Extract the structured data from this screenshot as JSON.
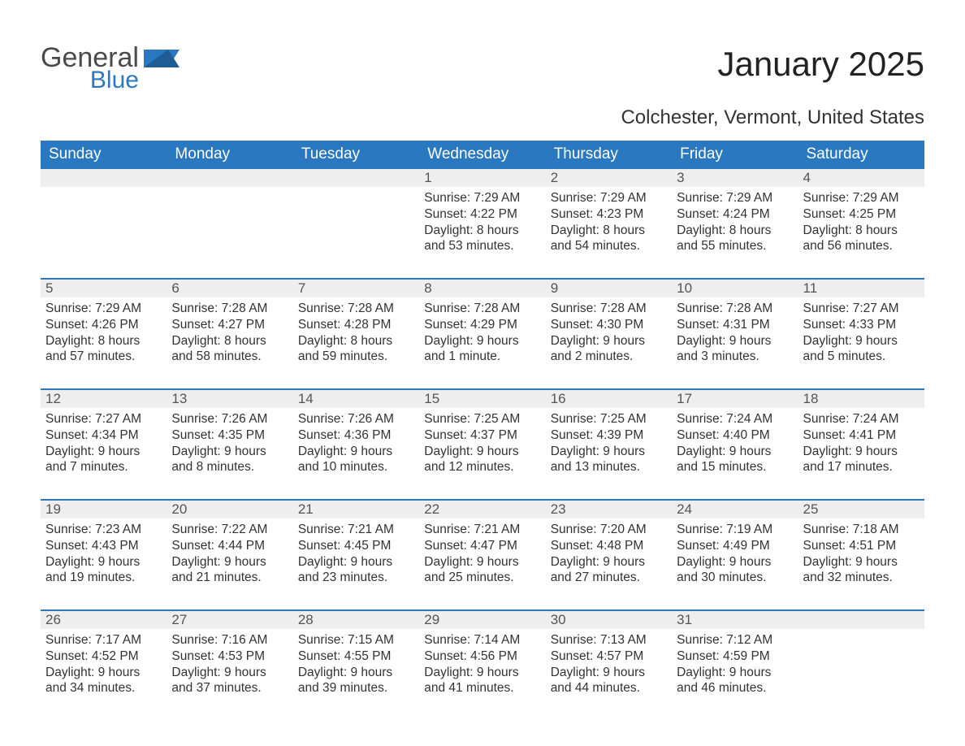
{
  "logo": {
    "general": "General",
    "blue": "Blue"
  },
  "title": "January 2025",
  "subtitle": "Colchester, Vermont, United States",
  "colors": {
    "brand": "#2a78bf",
    "header_bg": "#2a78bf",
    "header_text": "#ffffff",
    "daynum_bg": "#eeeeee",
    "text": "#333333",
    "week_border": "#2a78bf"
  },
  "daysOfWeek": [
    "Sunday",
    "Monday",
    "Tuesday",
    "Wednesday",
    "Thursday",
    "Friday",
    "Saturday"
  ],
  "weeks": [
    [
      {
        "n": "",
        "sunrise": "",
        "sunset": "",
        "daylight": ""
      },
      {
        "n": "",
        "sunrise": "",
        "sunset": "",
        "daylight": ""
      },
      {
        "n": "",
        "sunrise": "",
        "sunset": "",
        "daylight": ""
      },
      {
        "n": "1",
        "sunrise": "Sunrise: 7:29 AM",
        "sunset": "Sunset: 4:22 PM",
        "daylight": "Daylight: 8 hours and 53 minutes."
      },
      {
        "n": "2",
        "sunrise": "Sunrise: 7:29 AM",
        "sunset": "Sunset: 4:23 PM",
        "daylight": "Daylight: 8 hours and 54 minutes."
      },
      {
        "n": "3",
        "sunrise": "Sunrise: 7:29 AM",
        "sunset": "Sunset: 4:24 PM",
        "daylight": "Daylight: 8 hours and 55 minutes."
      },
      {
        "n": "4",
        "sunrise": "Sunrise: 7:29 AM",
        "sunset": "Sunset: 4:25 PM",
        "daylight": "Daylight: 8 hours and 56 minutes."
      }
    ],
    [
      {
        "n": "5",
        "sunrise": "Sunrise: 7:29 AM",
        "sunset": "Sunset: 4:26 PM",
        "daylight": "Daylight: 8 hours and 57 minutes."
      },
      {
        "n": "6",
        "sunrise": "Sunrise: 7:28 AM",
        "sunset": "Sunset: 4:27 PM",
        "daylight": "Daylight: 8 hours and 58 minutes."
      },
      {
        "n": "7",
        "sunrise": "Sunrise: 7:28 AM",
        "sunset": "Sunset: 4:28 PM",
        "daylight": "Daylight: 8 hours and 59 minutes."
      },
      {
        "n": "8",
        "sunrise": "Sunrise: 7:28 AM",
        "sunset": "Sunset: 4:29 PM",
        "daylight": "Daylight: 9 hours and 1 minute."
      },
      {
        "n": "9",
        "sunrise": "Sunrise: 7:28 AM",
        "sunset": "Sunset: 4:30 PM",
        "daylight": "Daylight: 9 hours and 2 minutes."
      },
      {
        "n": "10",
        "sunrise": "Sunrise: 7:28 AM",
        "sunset": "Sunset: 4:31 PM",
        "daylight": "Daylight: 9 hours and 3 minutes."
      },
      {
        "n": "11",
        "sunrise": "Sunrise: 7:27 AM",
        "sunset": "Sunset: 4:33 PM",
        "daylight": "Daylight: 9 hours and 5 minutes."
      }
    ],
    [
      {
        "n": "12",
        "sunrise": "Sunrise: 7:27 AM",
        "sunset": "Sunset: 4:34 PM",
        "daylight": "Daylight: 9 hours and 7 minutes."
      },
      {
        "n": "13",
        "sunrise": "Sunrise: 7:26 AM",
        "sunset": "Sunset: 4:35 PM",
        "daylight": "Daylight: 9 hours and 8 minutes."
      },
      {
        "n": "14",
        "sunrise": "Sunrise: 7:26 AM",
        "sunset": "Sunset: 4:36 PM",
        "daylight": "Daylight: 9 hours and 10 minutes."
      },
      {
        "n": "15",
        "sunrise": "Sunrise: 7:25 AM",
        "sunset": "Sunset: 4:37 PM",
        "daylight": "Daylight: 9 hours and 12 minutes."
      },
      {
        "n": "16",
        "sunrise": "Sunrise: 7:25 AM",
        "sunset": "Sunset: 4:39 PM",
        "daylight": "Daylight: 9 hours and 13 minutes."
      },
      {
        "n": "17",
        "sunrise": "Sunrise: 7:24 AM",
        "sunset": "Sunset: 4:40 PM",
        "daylight": "Daylight: 9 hours and 15 minutes."
      },
      {
        "n": "18",
        "sunrise": "Sunrise: 7:24 AM",
        "sunset": "Sunset: 4:41 PM",
        "daylight": "Daylight: 9 hours and 17 minutes."
      }
    ],
    [
      {
        "n": "19",
        "sunrise": "Sunrise: 7:23 AM",
        "sunset": "Sunset: 4:43 PM",
        "daylight": "Daylight: 9 hours and 19 minutes."
      },
      {
        "n": "20",
        "sunrise": "Sunrise: 7:22 AM",
        "sunset": "Sunset: 4:44 PM",
        "daylight": "Daylight: 9 hours and 21 minutes."
      },
      {
        "n": "21",
        "sunrise": "Sunrise: 7:21 AM",
        "sunset": "Sunset: 4:45 PM",
        "daylight": "Daylight: 9 hours and 23 minutes."
      },
      {
        "n": "22",
        "sunrise": "Sunrise: 7:21 AM",
        "sunset": "Sunset: 4:47 PM",
        "daylight": "Daylight: 9 hours and 25 minutes."
      },
      {
        "n": "23",
        "sunrise": "Sunrise: 7:20 AM",
        "sunset": "Sunset: 4:48 PM",
        "daylight": "Daylight: 9 hours and 27 minutes."
      },
      {
        "n": "24",
        "sunrise": "Sunrise: 7:19 AM",
        "sunset": "Sunset: 4:49 PM",
        "daylight": "Daylight: 9 hours and 30 minutes."
      },
      {
        "n": "25",
        "sunrise": "Sunrise: 7:18 AM",
        "sunset": "Sunset: 4:51 PM",
        "daylight": "Daylight: 9 hours and 32 minutes."
      }
    ],
    [
      {
        "n": "26",
        "sunrise": "Sunrise: 7:17 AM",
        "sunset": "Sunset: 4:52 PM",
        "daylight": "Daylight: 9 hours and 34 minutes."
      },
      {
        "n": "27",
        "sunrise": "Sunrise: 7:16 AM",
        "sunset": "Sunset: 4:53 PM",
        "daylight": "Daylight: 9 hours and 37 minutes."
      },
      {
        "n": "28",
        "sunrise": "Sunrise: 7:15 AM",
        "sunset": "Sunset: 4:55 PM",
        "daylight": "Daylight: 9 hours and 39 minutes."
      },
      {
        "n": "29",
        "sunrise": "Sunrise: 7:14 AM",
        "sunset": "Sunset: 4:56 PM",
        "daylight": "Daylight: 9 hours and 41 minutes."
      },
      {
        "n": "30",
        "sunrise": "Sunrise: 7:13 AM",
        "sunset": "Sunset: 4:57 PM",
        "daylight": "Daylight: 9 hours and 44 minutes."
      },
      {
        "n": "31",
        "sunrise": "Sunrise: 7:12 AM",
        "sunset": "Sunset: 4:59 PM",
        "daylight": "Daylight: 9 hours and 46 minutes."
      },
      {
        "n": "",
        "sunrise": "",
        "sunset": "",
        "daylight": ""
      }
    ]
  ]
}
